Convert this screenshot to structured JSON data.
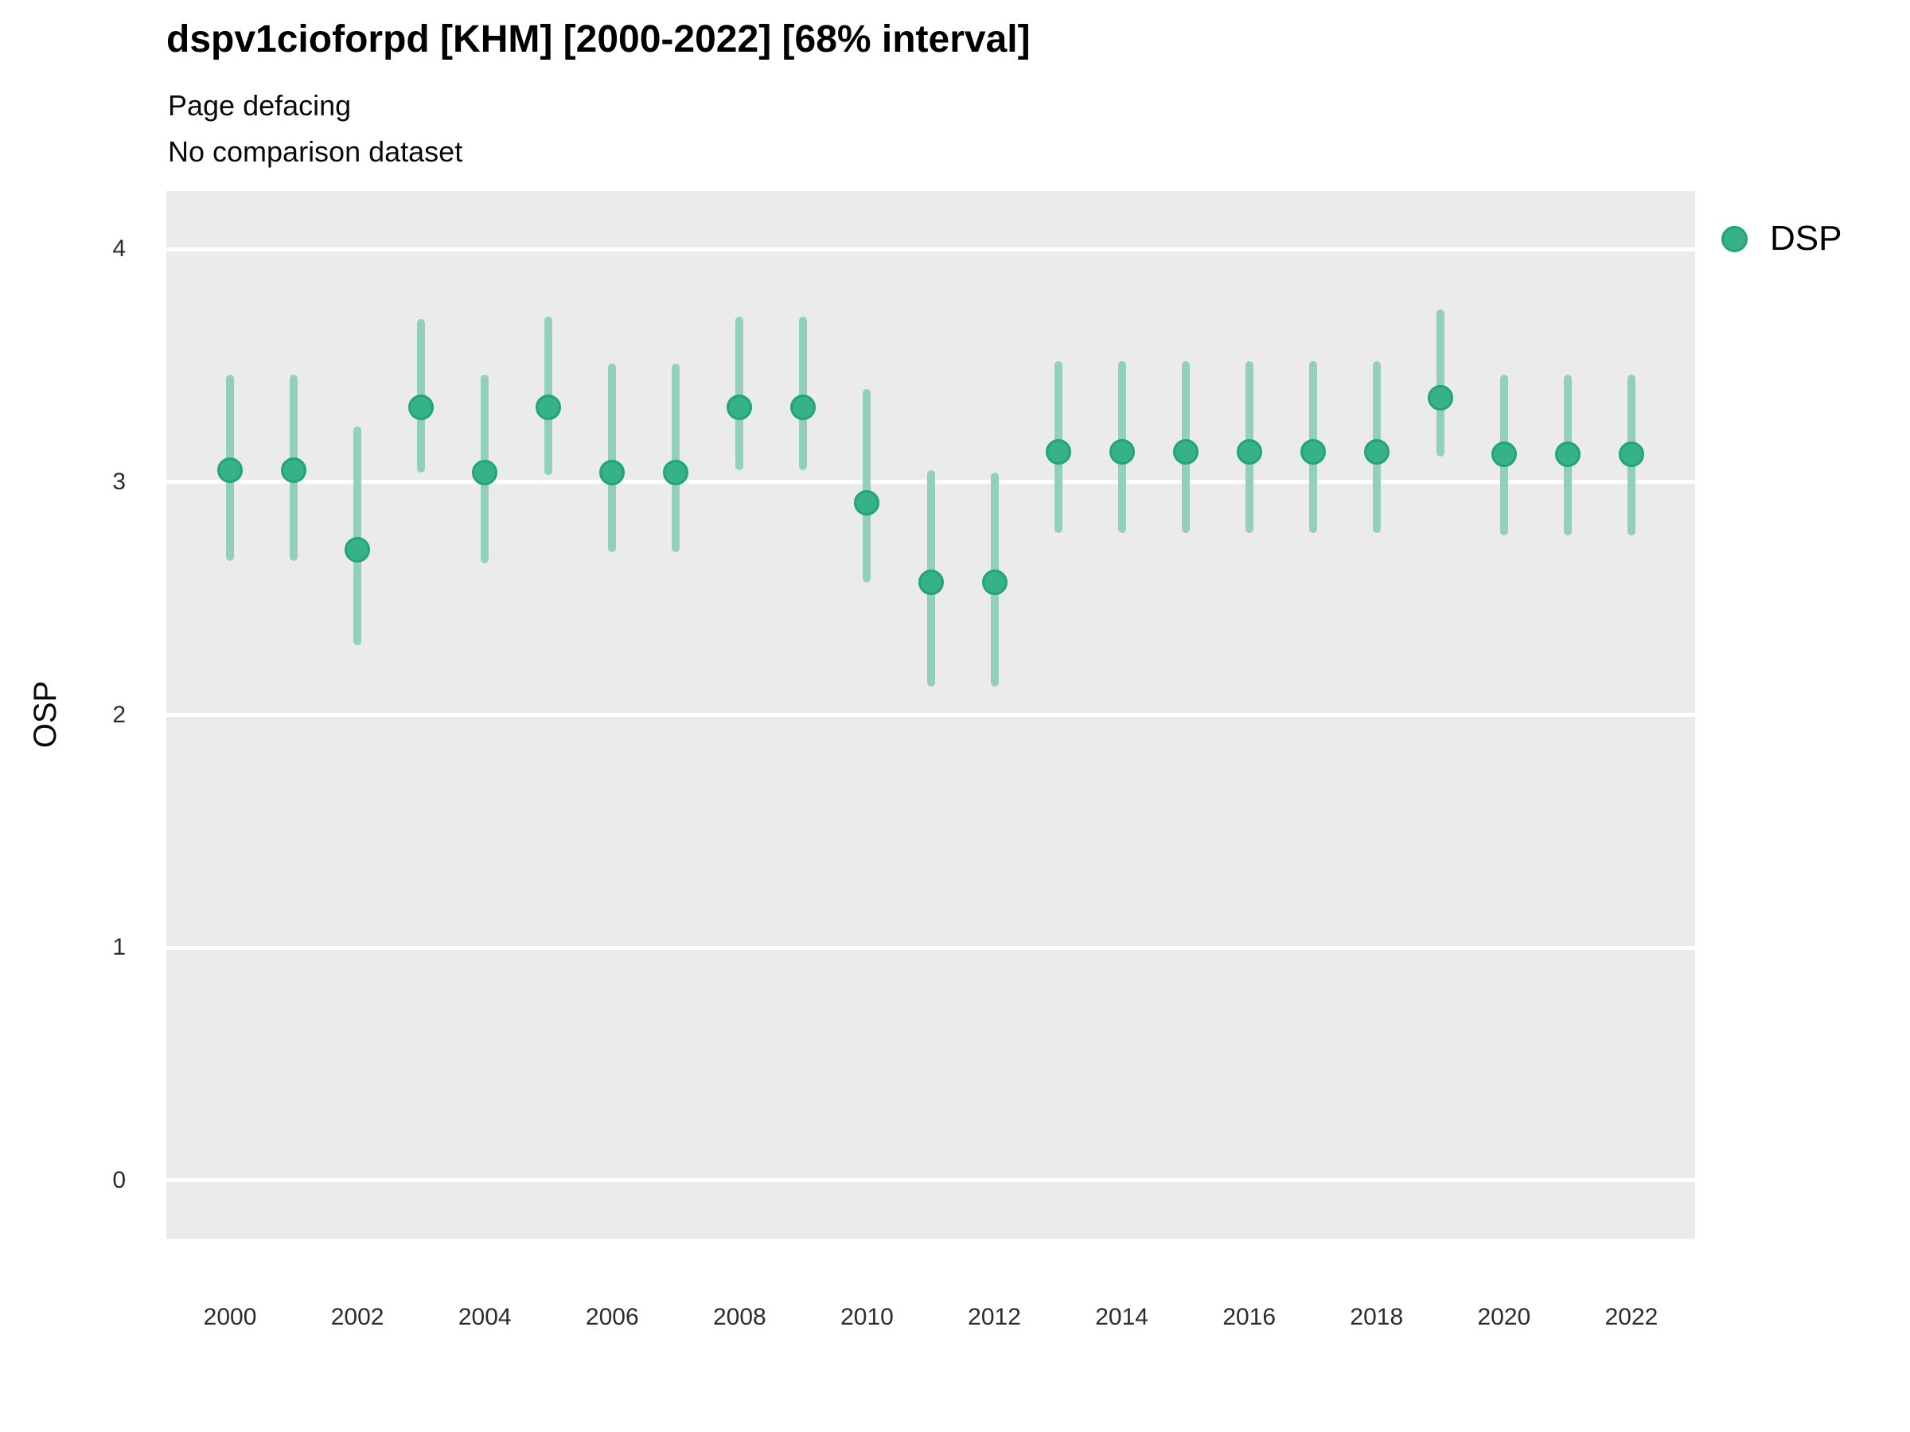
{
  "header": {
    "title": "dspv1cioforpd [KHM] [2000-2022] [68% interval]",
    "subtitle": "Page defacing",
    "comparison_note": "No comparison dataset"
  },
  "legend": {
    "items": [
      {
        "label": "DSP",
        "color": "#35b287"
      }
    ]
  },
  "axes": {
    "y_label": "OSP",
    "y_ticks": [
      0,
      1,
      2,
      3,
      4
    ],
    "x_ticks": [
      2000,
      2002,
      2004,
      2006,
      2008,
      2010,
      2012,
      2014,
      2016,
      2018,
      2020,
      2022
    ]
  },
  "colors": {
    "panel_background": "#ebebeb",
    "gridline": "#ffffff",
    "point_fill": "#35b287",
    "point_border": "#23a478",
    "interval_line": "#93cfbf",
    "text": "#0a0a0a"
  },
  "chart_data": {
    "type": "pointrange",
    "title": "dspv1cioforpd [KHM] [2000-2022] [68% interval]",
    "subtitle": "Page defacing",
    "note": "No comparison dataset",
    "interval": "68%",
    "xlabel": "",
    "ylabel": "OSP",
    "xlim": [
      1999,
      2023
    ],
    "ylim": [
      -0.25,
      4.25
    ],
    "y_ticks": [
      0,
      1,
      2,
      3,
      4
    ],
    "x_ticks": [
      2000,
      2002,
      2004,
      2006,
      2008,
      2010,
      2012,
      2014,
      2016,
      2018,
      2020,
      2022
    ],
    "grid": "horizontal-only",
    "legend_position": "right",
    "series": [
      {
        "name": "DSP",
        "points": [
          {
            "year": 2000,
            "value": 3.05,
            "lo": 2.66,
            "hi": 3.46
          },
          {
            "year": 2001,
            "value": 3.05,
            "lo": 2.66,
            "hi": 3.46
          },
          {
            "year": 2002,
            "value": 2.71,
            "lo": 2.3,
            "hi": 3.24
          },
          {
            "year": 2003,
            "value": 3.32,
            "lo": 3.04,
            "hi": 3.7
          },
          {
            "year": 2004,
            "value": 3.04,
            "lo": 2.65,
            "hi": 3.46
          },
          {
            "year": 2005,
            "value": 3.32,
            "lo": 3.03,
            "hi": 3.71
          },
          {
            "year": 2006,
            "value": 3.04,
            "lo": 2.7,
            "hi": 3.51
          },
          {
            "year": 2007,
            "value": 3.04,
            "lo": 2.7,
            "hi": 3.51
          },
          {
            "year": 2008,
            "value": 3.32,
            "lo": 3.05,
            "hi": 3.71
          },
          {
            "year": 2009,
            "value": 3.32,
            "lo": 3.05,
            "hi": 3.71
          },
          {
            "year": 2010,
            "value": 2.91,
            "lo": 2.57,
            "hi": 3.4
          },
          {
            "year": 2011,
            "value": 2.57,
            "lo": 2.12,
            "hi": 3.05
          },
          {
            "year": 2012,
            "value": 2.57,
            "lo": 2.12,
            "hi": 3.04
          },
          {
            "year": 2013,
            "value": 3.13,
            "lo": 2.78,
            "hi": 3.52
          },
          {
            "year": 2014,
            "value": 3.13,
            "lo": 2.78,
            "hi": 3.52
          },
          {
            "year": 2015,
            "value": 3.13,
            "lo": 2.78,
            "hi": 3.52
          },
          {
            "year": 2016,
            "value": 3.13,
            "lo": 2.78,
            "hi": 3.52
          },
          {
            "year": 2017,
            "value": 3.13,
            "lo": 2.78,
            "hi": 3.52
          },
          {
            "year": 2018,
            "value": 3.13,
            "lo": 2.78,
            "hi": 3.52
          },
          {
            "year": 2019,
            "value": 3.36,
            "lo": 3.11,
            "hi": 3.74
          },
          {
            "year": 2020,
            "value": 3.12,
            "lo": 2.77,
            "hi": 3.46
          },
          {
            "year": 2021,
            "value": 3.12,
            "lo": 2.77,
            "hi": 3.46
          },
          {
            "year": 2022,
            "value": 3.12,
            "lo": 2.77,
            "hi": 3.46
          }
        ]
      }
    ]
  }
}
